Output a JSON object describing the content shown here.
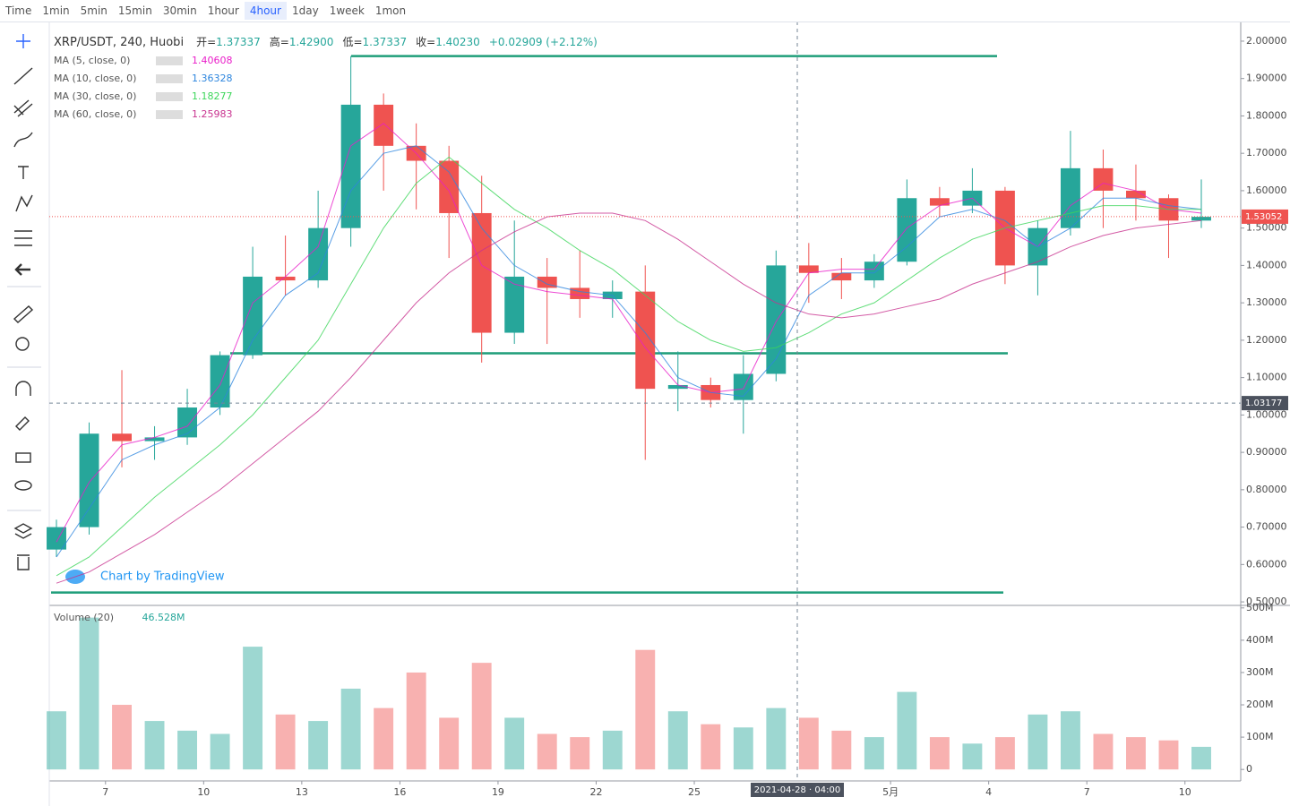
{
  "toolbar": {
    "intervals": [
      "Time",
      "1min",
      "5min",
      "15min",
      "30min",
      "1hour",
      "4hour",
      "1day",
      "1week",
      "1mon"
    ],
    "active": 6
  },
  "chart_data": {
    "type": "candlestick",
    "title": "XRP/USDT, 240, Huobi",
    "stats": [
      {
        "name": "开=",
        "value": 1.37337
      },
      {
        "name": "高=",
        "value": 1.429,
        "label": "1.42900"
      },
      {
        "name": "低=",
        "value": 1.37337
      },
      {
        "name": "收=",
        "value": 1.4023,
        "label": "1.40230"
      }
    ],
    "change": {
      "value": 0.02909,
      "label": "+0.02909 (+2.12%)"
    },
    "categories": [
      null,
      null,
      "7",
      null,
      null,
      "10",
      null,
      null,
      "13",
      null,
      null,
      "16",
      null,
      null,
      "19",
      null,
      null,
      "22",
      null,
      null,
      "25",
      null,
      null,
      null,
      null,
      null,
      "5月",
      null,
      null,
      "4",
      null,
      null,
      "7",
      null,
      null,
      "10"
    ],
    "open": [
      0.64,
      0.7,
      0.95,
      0.93,
      0.94,
      1.02,
      1.16,
      1.37,
      1.36,
      1.5,
      1.83,
      1.72,
      1.68,
      1.54,
      1.22,
      1.37,
      1.34,
      1.31,
      1.33,
      1.07,
      1.08,
      1.04,
      1.11,
      1.4,
      1.38,
      1.36,
      1.41,
      1.58,
      1.56,
      1.6,
      1.4,
      1.5,
      1.66,
      1.6,
      1.58,
      1.52
    ],
    "high": [
      0.72,
      0.98,
      1.12,
      0.97,
      1.07,
      1.17,
      1.45,
      1.48,
      1.6,
      1.96,
      1.86,
      1.78,
      1.72,
      1.64,
      1.52,
      1.42,
      1.44,
      1.36,
      1.4,
      1.17,
      1.1,
      1.16,
      1.44,
      1.46,
      1.42,
      1.43,
      1.63,
      1.61,
      1.66,
      1.61,
      1.52,
      1.76,
      1.71,
      1.67,
      1.59,
      1.63
    ],
    "low": [
      0.62,
      0.68,
      0.86,
      0.88,
      0.92,
      1.0,
      1.15,
      1.32,
      1.34,
      1.45,
      1.6,
      1.55,
      1.42,
      1.14,
      1.19,
      1.19,
      1.26,
      1.26,
      0.88,
      1.01,
      1.02,
      0.95,
      1.09,
      1.3,
      1.31,
      1.34,
      1.4,
      1.53,
      1.54,
      1.35,
      1.32,
      1.48,
      1.5,
      1.52,
      1.42,
      1.5
    ],
    "close": [
      0.7,
      0.95,
      0.93,
      0.94,
      1.02,
      1.16,
      1.37,
      1.36,
      1.5,
      1.83,
      1.72,
      1.68,
      1.54,
      1.22,
      1.37,
      1.34,
      1.31,
      1.33,
      1.07,
      1.08,
      1.04,
      1.11,
      1.4,
      1.38,
      1.36,
      1.41,
      1.58,
      1.56,
      1.6,
      1.4,
      1.5,
      1.66,
      1.6,
      1.58,
      1.52,
      1.53
    ],
    "up_color": "#26a69a",
    "down_color": "#ef5350",
    "ylim": [
      0.493,
      2.043
    ],
    "yticks": [
      {
        "value": 2.0,
        "label": "2.00000"
      },
      {
        "value": 1.9,
        "label": "1.90000"
      },
      {
        "value": 1.8,
        "label": "1.80000"
      },
      {
        "value": 1.7,
        "label": "1.70000"
      },
      {
        "value": 1.6,
        "label": "1.60000"
      },
      {
        "value": 1.5,
        "label": "1.50000"
      },
      {
        "value": 1.4,
        "label": "1.40000"
      },
      {
        "value": 1.3,
        "label": "1.30000"
      },
      {
        "value": 1.2,
        "label": "1.20000"
      },
      {
        "value": 1.1,
        "label": "1.10000"
      },
      {
        "value": 1.0,
        "label": "1.00000"
      },
      {
        "value": 0.9,
        "label": "0.90000"
      },
      {
        "value": 0.8,
        "label": "0.80000"
      },
      {
        "value": 0.7,
        "label": "0.70000"
      },
      {
        "value": 0.6,
        "label": "0.60000"
      },
      {
        "value": 0.5,
        "label": "0.50000"
      }
    ],
    "ma": [
      {
        "name": "MA (5, close, 0)",
        "color": "#e91ec9",
        "last": 1.40608,
        "values": [
          0.66,
          0.82,
          0.92,
          0.94,
          0.97,
          1.08,
          1.3,
          1.37,
          1.45,
          1.72,
          1.78,
          1.7,
          1.6,
          1.4,
          1.35,
          1.33,
          1.32,
          1.31,
          1.18,
          1.08,
          1.06,
          1.07,
          1.25,
          1.38,
          1.39,
          1.39,
          1.5,
          1.56,
          1.58,
          1.5,
          1.45,
          1.56,
          1.62,
          1.6,
          1.55,
          1.54
        ]
      },
      {
        "name": "MA (10, close, 0)",
        "color": "#2e86de",
        "last": 1.36328,
        "values": [
          0.62,
          0.75,
          0.88,
          0.92,
          0.95,
          1.02,
          1.2,
          1.32,
          1.38,
          1.6,
          1.7,
          1.72,
          1.65,
          1.5,
          1.4,
          1.35,
          1.33,
          1.32,
          1.22,
          1.1,
          1.06,
          1.05,
          1.15,
          1.32,
          1.38,
          1.38,
          1.45,
          1.53,
          1.55,
          1.52,
          1.45,
          1.5,
          1.58,
          1.58,
          1.56,
          1.55
        ]
      },
      {
        "name": "MA (30, close, 0)",
        "color": "#3cd65a",
        "last": 1.18277,
        "values": [
          0.57,
          0.62,
          0.7,
          0.78,
          0.85,
          0.92,
          1.0,
          1.1,
          1.2,
          1.35,
          1.5,
          1.62,
          1.69,
          1.62,
          1.55,
          1.5,
          1.44,
          1.39,
          1.32,
          1.25,
          1.2,
          1.17,
          1.18,
          1.22,
          1.27,
          1.3,
          1.36,
          1.42,
          1.47,
          1.5,
          1.52,
          1.54,
          1.56,
          1.56,
          1.55,
          1.55
        ]
      },
      {
        "name": "MA (60, close, 0)",
        "color": "#c8328f",
        "last": 1.25983,
        "values": [
          0.55,
          0.58,
          0.63,
          0.68,
          0.74,
          0.8,
          0.87,
          0.94,
          1.01,
          1.1,
          1.2,
          1.3,
          1.38,
          1.44,
          1.49,
          1.53,
          1.54,
          1.54,
          1.52,
          1.47,
          1.41,
          1.35,
          1.3,
          1.27,
          1.26,
          1.27,
          1.29,
          1.31,
          1.35,
          1.38,
          1.41,
          1.45,
          1.48,
          1.5,
          1.51,
          1.52
        ]
      }
    ],
    "levels": [
      1.96,
      1.165,
      0.525
    ],
    "last_price": {
      "value": 1.53052,
      "label": "1.53052"
    },
    "crosshair": {
      "value": 1.03177,
      "label": "1.03177",
      "time": "2021-04-28 · 04:00"
    },
    "volume_title": "Volume (20)",
    "volume_last": {
      "value": 46528000,
      "label": "46.528M"
    },
    "volume": [
      180000000,
      470000000,
      200000000,
      150000000,
      120000000,
      110000000,
      380000000,
      170000000,
      150000000,
      250000000,
      190000000,
      300000000,
      160000000,
      330000000,
      160000000,
      110000000,
      100000000,
      120000000,
      370000000,
      180000000,
      140000000,
      130000000,
      190000000,
      160000000,
      120000000,
      100000000,
      240000000,
      100000000,
      80000000,
      100000000,
      170000000,
      180000000,
      110000000,
      100000000,
      90000000,
      70000000
    ],
    "vlim": [
      -30000000,
      505000000
    ],
    "vticks": [
      {
        "value": 500000000,
        "label": "500M"
      },
      {
        "value": 400000000,
        "label": "400M"
      },
      {
        "value": 300000000,
        "label": "300M"
      },
      {
        "value": 200000000,
        "label": "200M"
      },
      {
        "value": 100000000,
        "label": "100M"
      },
      0
    ],
    "credit": "Chart by TradingView"
  }
}
